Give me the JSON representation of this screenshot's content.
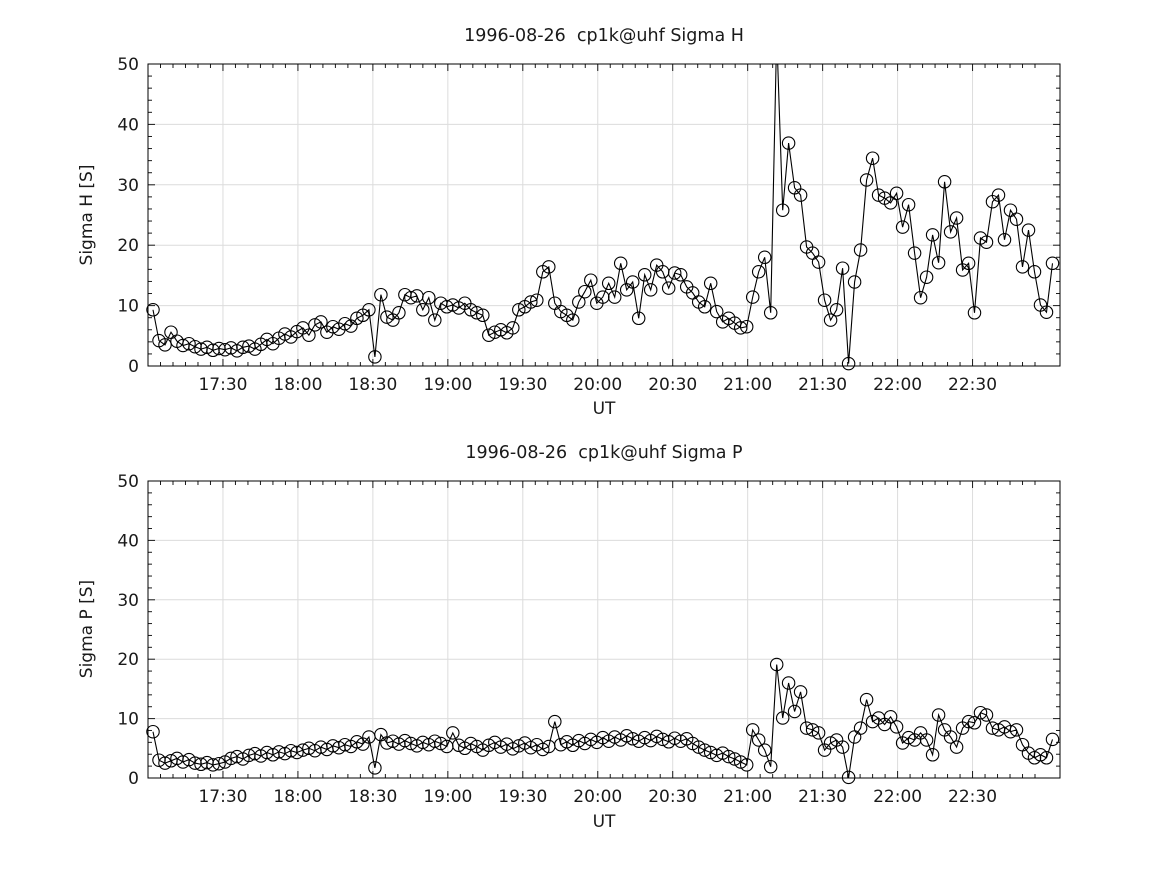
{
  "figure": {
    "background": "#ffffff",
    "axis_color": "#000000",
    "grid_color": "#dcdcdc",
    "tick_color": "#1a1a1a",
    "text_color": "#1a1a1a",
    "line_color": "#000000",
    "marker": "open-circle"
  },
  "chart_data": [
    {
      "type": "line",
      "title": "1996-08-26  cp1k@uhf Sigma H",
      "xlabel": "UT",
      "ylabel": "Sigma H [S]",
      "ylim": [
        0,
        50
      ],
      "yticks": [
        0,
        10,
        20,
        30,
        40,
        50
      ],
      "y_minor_step": 2,
      "xlim_minutes": [
        1020,
        1385
      ],
      "xtick_minutes": [
        1050,
        1080,
        1110,
        1140,
        1170,
        1200,
        1230,
        1260,
        1290,
        1320,
        1350
      ],
      "xtick_labels": [
        "17:30",
        "18:00",
        "18:30",
        "19:00",
        "19:30",
        "20:00",
        "20:30",
        "21:00",
        "21:30",
        "22:00",
        "22:30"
      ],
      "x_minor_step_minutes": 5,
      "grid": true,
      "series": [
        {
          "name": "Sigma H",
          "start_minute": 1022,
          "step_minutes": 2.4,
          "values": [
            9.3,
            4.2,
            3.5,
            5.6,
            4.1,
            3.4,
            3.7,
            3.2,
            2.8,
            3.1,
            2.6,
            2.9,
            2.7,
            3.0,
            2.5,
            3.1,
            3.3,
            2.8,
            3.6,
            4.4,
            3.7,
            4.6,
            5.3,
            4.8,
            5.7,
            6.3,
            5.1,
            6.8,
            7.3,
            5.6,
            6.5,
            6.1,
            7.0,
            6.6,
            7.9,
            8.4,
            9.3,
            1.5,
            11.8,
            8.1,
            7.6,
            8.8,
            11.8,
            11.3,
            11.6,
            9.3,
            11.3,
            7.6,
            10.4,
            9.8,
            10.1,
            9.6,
            10.4,
            9.3,
            8.8,
            8.4,
            5.1,
            5.6,
            6.0,
            5.5,
            6.3,
            9.3,
            9.8,
            10.6,
            10.9,
            15.6,
            16.4,
            10.4,
            9.0,
            8.4,
            7.6,
            10.6,
            12.3,
            14.2,
            10.4,
            11.4,
            13.7,
            11.4,
            17.0,
            12.6,
            13.9,
            7.9,
            15.1,
            12.6,
            16.7,
            15.6,
            12.9,
            15.4,
            15.1,
            13.1,
            12.1,
            10.6,
            9.8,
            13.7,
            9.0,
            7.3,
            7.9,
            7.1,
            6.3,
            6.5,
            11.4,
            15.6,
            18.0,
            8.8,
            55.0,
            25.8,
            36.9,
            29.5,
            28.3,
            19.7,
            18.7,
            17.2,
            10.9,
            7.6,
            9.3,
            16.2,
            0.4,
            13.9,
            19.2,
            30.8,
            34.4,
            28.3,
            27.8,
            27.0,
            28.6,
            23.0,
            26.7,
            18.7,
            11.3,
            14.7,
            21.7,
            17.1,
            30.5,
            22.2,
            24.5,
            15.9,
            17.0,
            8.8,
            21.2,
            20.5,
            27.2,
            28.3,
            20.9,
            25.8,
            24.3,
            16.4,
            22.5,
            15.6,
            10.1,
            8.9,
            17.0
          ]
        }
      ]
    },
    {
      "type": "line",
      "title": "1996-08-26  cp1k@uhf Sigma P",
      "xlabel": "UT",
      "ylabel": "Sigma P [S]",
      "ylim": [
        0,
        50
      ],
      "yticks": [
        0,
        10,
        20,
        30,
        40,
        50
      ],
      "y_minor_step": 2,
      "xlim_minutes": [
        1020,
        1385
      ],
      "xtick_minutes": [
        1050,
        1080,
        1110,
        1140,
        1170,
        1200,
        1230,
        1260,
        1290,
        1320,
        1350
      ],
      "xtick_labels": [
        "17:30",
        "18:00",
        "18:30",
        "19:00",
        "19:30",
        "20:00",
        "20:30",
        "21:00",
        "21:30",
        "22:00",
        "22:30"
      ],
      "x_minor_step_minutes": 5,
      "grid": true,
      "series": [
        {
          "name": "Sigma P",
          "start_minute": 1022,
          "step_minutes": 2.4,
          "values": [
            7.8,
            3.0,
            2.5,
            2.9,
            3.3,
            2.7,
            3.1,
            2.5,
            2.3,
            2.6,
            2.2,
            2.4,
            2.7,
            3.3,
            3.6,
            3.2,
            3.8,
            4.1,
            3.7,
            4.3,
            3.9,
            4.4,
            4.1,
            4.6,
            4.3,
            4.7,
            5.0,
            4.6,
            5.2,
            4.8,
            5.4,
            5.1,
            5.6,
            5.3,
            6.1,
            5.7,
            6.9,
            1.7,
            7.3,
            5.9,
            6.2,
            5.7,
            6.3,
            5.8,
            5.4,
            6.0,
            5.6,
            6.2,
            5.8,
            5.3,
            7.6,
            5.5,
            5.0,
            5.8,
            5.3,
            4.7,
            5.5,
            6.0,
            5.2,
            5.7,
            4.9,
            5.4,
            5.9,
            5.1,
            5.6,
            4.8,
            5.3,
            9.5,
            5.6,
            6.1,
            5.5,
            6.3,
            5.8,
            6.5,
            6.0,
            6.8,
            6.2,
            6.9,
            6.4,
            7.1,
            6.6,
            6.2,
            6.8,
            6.3,
            7.0,
            6.5,
            6.1,
            6.7,
            6.2,
            6.6,
            5.8,
            5.2,
            4.7,
            4.3,
            3.8,
            4.2,
            3.6,
            3.2,
            2.7,
            2.2,
            8.1,
            6.4,
            4.7,
            1.9,
            19.1,
            10.1,
            16.0,
            11.2,
            14.5,
            8.4,
            8.1,
            7.6,
            4.7,
            5.9,
            6.4,
            5.2,
            0.1,
            6.9,
            8.4,
            13.2,
            9.5,
            10.1,
            9.0,
            10.3,
            8.6,
            5.9,
            6.8,
            6.4,
            7.6,
            6.4,
            3.9,
            10.6,
            8.1,
            6.9,
            5.2,
            8.4,
            9.5,
            9.3,
            11.0,
            10.6,
            8.4,
            8.1,
            8.6,
            7.8,
            8.1,
            5.6,
            4.2,
            3.4,
            3.9,
            3.4,
            6.5
          ]
        }
      ]
    }
  ]
}
